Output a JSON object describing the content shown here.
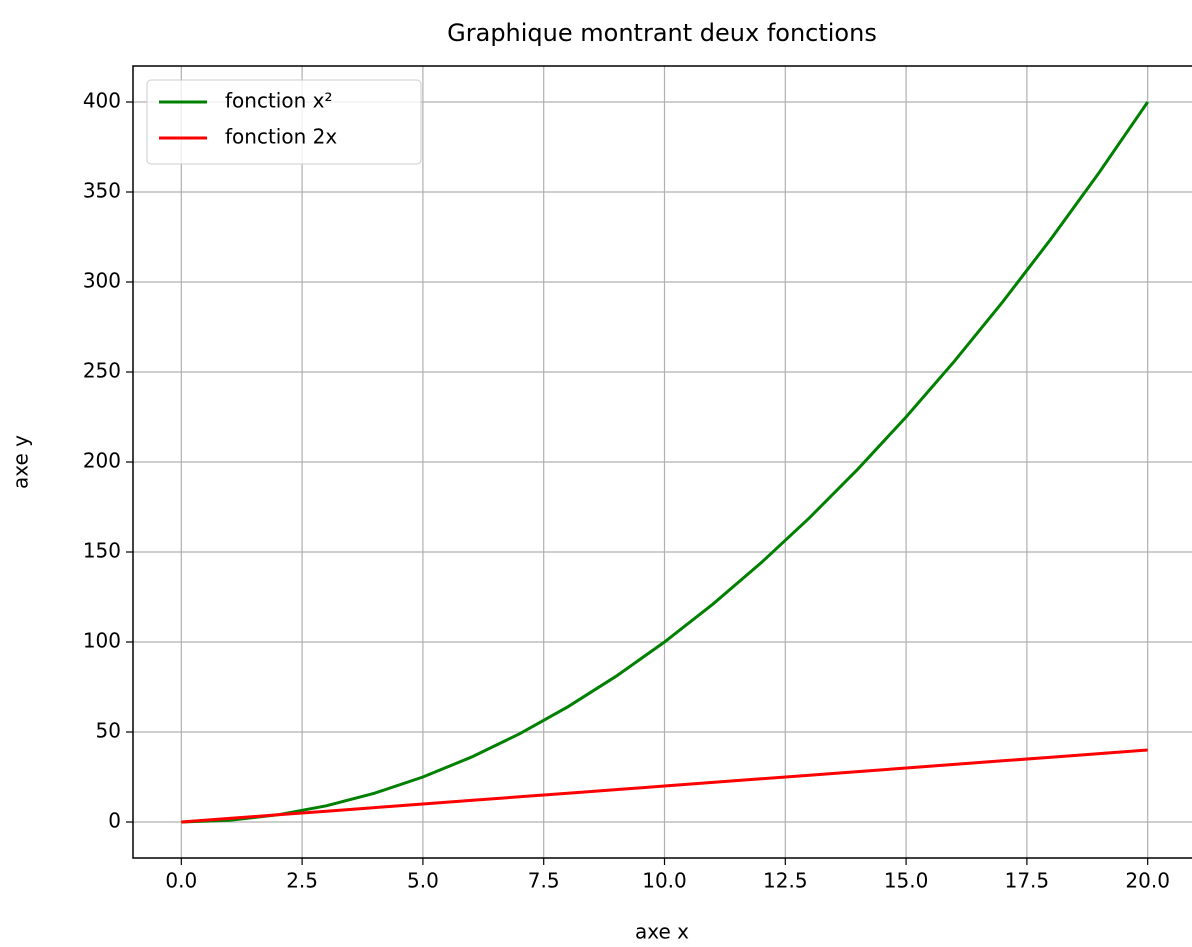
{
  "chart_data": {
    "type": "line",
    "title": "Graphique montrant deux fonctions",
    "x_label": "axe x",
    "y_label": "axe y",
    "x": [
      0,
      1,
      2,
      3,
      4,
      5,
      6,
      7,
      8,
      9,
      10,
      11,
      12,
      13,
      14,
      15,
      16,
      17,
      18,
      19,
      20
    ],
    "series": [
      {
        "name": "fonction x²",
        "color": "#008000",
        "values": [
          0,
          1,
          4,
          9,
          16,
          25,
          36,
          49,
          64,
          81,
          100,
          121,
          144,
          169,
          196,
          225,
          256,
          289,
          324,
          361,
          400
        ]
      },
      {
        "name": "fonction 2x",
        "color": "#ff0000",
        "values": [
          0,
          2,
          4,
          6,
          8,
          10,
          12,
          14,
          16,
          18,
          20,
          22,
          24,
          26,
          28,
          30,
          32,
          34,
          36,
          38,
          40
        ]
      }
    ],
    "xlim": [
      -1,
      21
    ],
    "ylim": [
      -20,
      420
    ],
    "xticks": [
      {
        "value": 0,
        "label": "0.0"
      },
      2.5,
      {
        "value": 5,
        "label": "5.0"
      },
      7.5,
      {
        "value": 10,
        "label": "10.0"
      },
      12.5,
      {
        "value": 15,
        "label": "15.0"
      },
      17.5,
      {
        "value": 20,
        "label": "20.0"
      }
    ],
    "yticks": [
      0,
      50,
      100,
      150,
      200,
      250,
      300,
      350,
      400
    ],
    "grid": true,
    "legend": "upper left"
  }
}
